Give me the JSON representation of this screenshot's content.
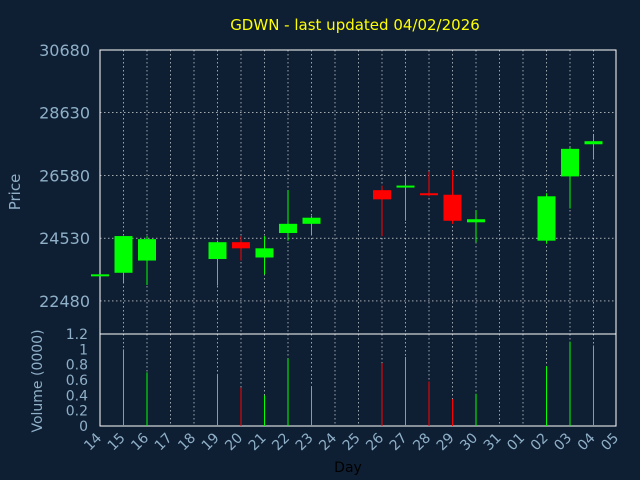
{
  "chart_data": {
    "type": "candlestick",
    "title": "GDWN - last updated 04/02/2026",
    "xlabel": "Day",
    "ylabel": "Price",
    "volume_label": "Volume (0000)",
    "x_ticks": [
      "14",
      "15",
      "16",
      "17",
      "18",
      "19",
      "20",
      "21",
      "22",
      "23",
      "24",
      "25",
      "26",
      "27",
      "28",
      "29",
      "30",
      "31",
      "01",
      "02",
      "03",
      "04",
      "05"
    ],
    "y_ticks": [
      22480,
      24530,
      26580,
      28630,
      30680
    ],
    "ylim": [
      21400,
      30680
    ],
    "volume_ticks": [
      "0",
      "0.2",
      "0.4",
      "0.6",
      "0.8",
      "1",
      "1.2"
    ],
    "volume_ylim": [
      0,
      1.2
    ],
    "grid": true,
    "colors": {
      "up": "#00ff00",
      "down": "#ff0000",
      "background": "#0f1f33",
      "axis": "#ffffff",
      "label": "#8fb0c8",
      "title": "#ffff00"
    },
    "candles": [
      {
        "x": "14",
        "open": 23350,
        "high": 23350,
        "low": 23350,
        "close": 23350,
        "volume": 0
      },
      {
        "x": "15",
        "open": 23400,
        "high": 24600,
        "low": 23100,
        "close": 24600,
        "volume": 1.0
      },
      {
        "x": "16",
        "open": 23800,
        "high": 24600,
        "low": 23000,
        "close": 24500,
        "volume": 0.7
      },
      {
        "x": "19",
        "open": 23850,
        "high": 24450,
        "low": 22980,
        "close": 24400,
        "volume": 0.68
      },
      {
        "x": "20",
        "open": 24400,
        "high": 24600,
        "low": 23800,
        "close": 24200,
        "volume": 0.5
      },
      {
        "x": "21",
        "open": 23900,
        "high": 24600,
        "low": 23350,
        "close": 24200,
        "volume": 0.4
      },
      {
        "x": "22",
        "open": 24700,
        "high": 26100,
        "low": 24450,
        "close": 25000,
        "volume": 0.88
      },
      {
        "x": "23",
        "open": 25000,
        "high": 25250,
        "low": 24650,
        "close": 25200,
        "volume": 0.52
      },
      {
        "x": "26",
        "open": 26100,
        "high": 26250,
        "low": 24600,
        "close": 25800,
        "volume": 0.82
      },
      {
        "x": "27",
        "open": 26200,
        "high": 26600,
        "low": 25100,
        "close": 26250,
        "volume": 0.9
      },
      {
        "x": "28",
        "open": 26000,
        "high": 26700,
        "low": 25900,
        "close": 25950,
        "volume": 0.58
      },
      {
        "x": "29",
        "open": 25950,
        "high": 26750,
        "low": 25000,
        "close": 25100,
        "volume": 0.35
      },
      {
        "x": "30",
        "open": 25050,
        "high": 25450,
        "low": 24400,
        "close": 25150,
        "volume": 0.42
      },
      {
        "x": "02",
        "open": 24450,
        "high": 26000,
        "low": 24350,
        "close": 25900,
        "volume": 0.78
      },
      {
        "x": "03",
        "open": 26550,
        "high": 27500,
        "low": 25500,
        "close": 27450,
        "volume": 1.1
      },
      {
        "x": "04",
        "open": 27600,
        "high": 27900,
        "low": 27150,
        "close": 27700,
        "volume": 1.05
      }
    ]
  }
}
